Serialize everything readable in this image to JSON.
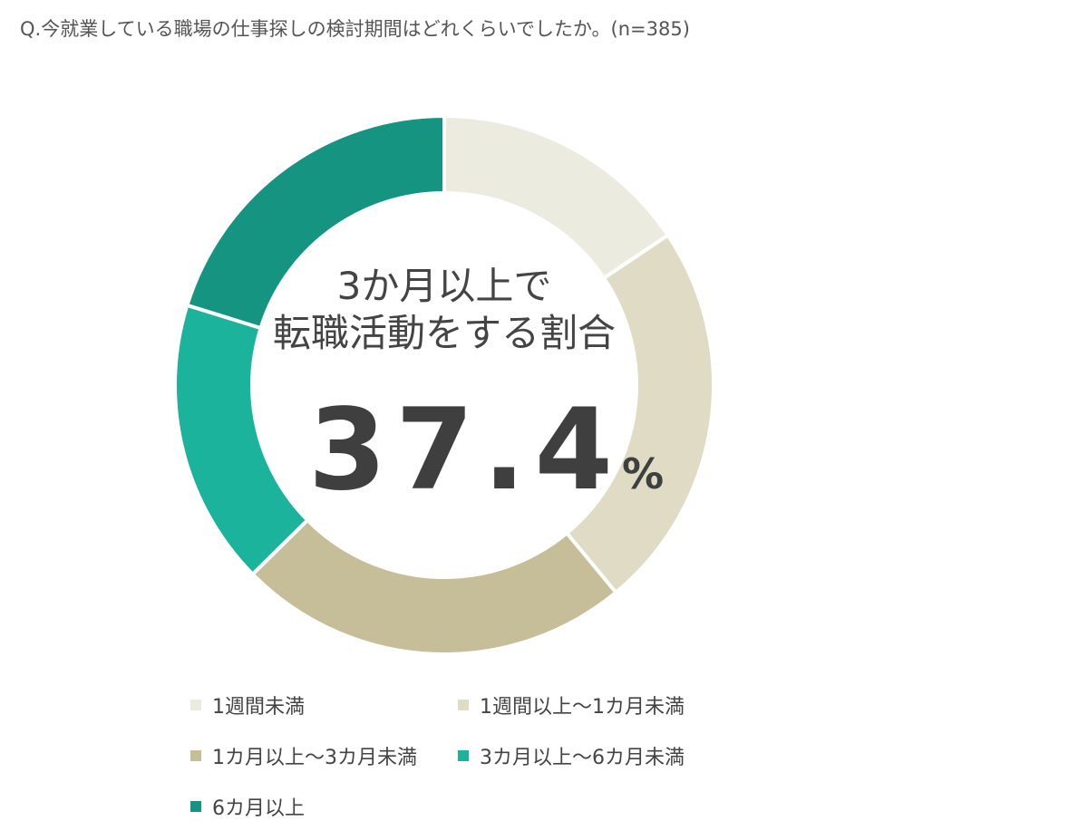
{
  "question": "Q.今就業している職場の仕事探しの検討期間はどれくらいでしたか。(n=385)",
  "center": {
    "line1": "3か月以上で",
    "line2": "転職活動をする割合",
    "value": "37.4",
    "unit": "%"
  },
  "chart_data": {
    "type": "pie",
    "title": "Q.今就業している職場の仕事探しの検討期間はどれくらいでしたか。(n=385)",
    "n": 385,
    "categories": [
      "1週間未満",
      "1週間以上～1カ月未満",
      "1カ月以上～3カ月未満",
      "3カ月以上～6カ月未満",
      "6カ月以上"
    ],
    "values": [
      15.6,
      23.4,
      23.6,
      17.2,
      20.2
    ],
    "colors": [
      "#ecebe0",
      "#dfdbc4",
      "#c5be98",
      "#1cb39d",
      "#159482"
    ],
    "highlight_value": 37.4,
    "legend_position": "bottom"
  },
  "legend": [
    {
      "label": "1週間未満",
      "color": "#ecebe0"
    },
    {
      "label": "1週間以上～1カ月未満",
      "color": "#dfdbc4"
    },
    {
      "label": "1カ月以上～3カ月未満",
      "color": "#c5be98"
    },
    {
      "label": "3カ月以上～6カ月未満",
      "color": "#1cb39d"
    },
    {
      "label": "6カ月以上",
      "color": "#159482"
    }
  ]
}
